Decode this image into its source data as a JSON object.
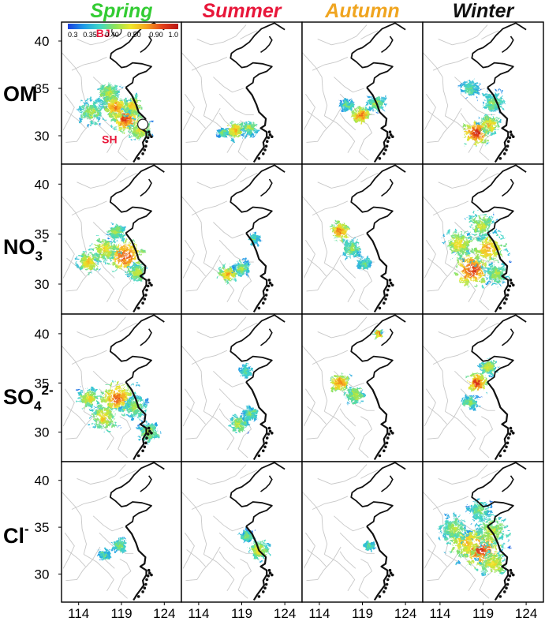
{
  "chart_data": {
    "type": "heatmap",
    "layout": "4x4 small-multiple maps",
    "seasons": [
      {
        "label": "Spring",
        "color": "#33cc33"
      },
      {
        "label": "Summer",
        "color": "#e8173a"
      },
      {
        "label": "Autumn",
        "color": "#f0a520"
      },
      {
        "label": "Winter",
        "color": "#111111"
      }
    ],
    "species": [
      {
        "main": "OM",
        "sub": "",
        "sup": ""
      },
      {
        "main": "NO",
        "sub": "3",
        "sup": "-"
      },
      {
        "main": "SO",
        "sub": "4",
        "sup": "2-"
      },
      {
        "main": "Cl",
        "sub": "",
        "sup": "-"
      }
    ],
    "x_ticks": [
      "114",
      "119",
      "124"
    ],
    "y_ticks": [
      "40",
      "35",
      "30"
    ],
    "xlim": [
      112,
      126
    ],
    "ylim": [
      27,
      42
    ],
    "grid": false,
    "colorbar": {
      "ticks": [
        "0.3",
        "0.35",
        "0.40",
        "0.50",
        "0.90",
        "1.0"
      ],
      "stops": [
        "#1a3fe0",
        "#1e9be8",
        "#3fd6c8",
        "#8ee35a",
        "#f0e62a",
        "#f6a21e",
        "#e4401a",
        "#b81414"
      ]
    },
    "markers": [
      {
        "label": "BJ",
        "lon": 116.4,
        "lat": 39.9,
        "style": "open-circle"
      },
      {
        "label": "SH",
        "lon": 121.5,
        "lat": 31.2,
        "style": "filled-circle"
      }
    ],
    "hotspots": [
      [
        [
          {
            "lon": 119.5,
            "lat": 31.8,
            "r": 1.6,
            "v": 0.95
          },
          {
            "lon": 120.4,
            "lat": 33.2,
            "r": 1.2,
            "v": 0.7
          },
          {
            "lon": 117.5,
            "lat": 34.5,
            "r": 1.4,
            "v": 0.55
          },
          {
            "lon": 115.5,
            "lat": 32.5,
            "r": 1.6,
            "v": 0.5
          },
          {
            "lon": 121.2,
            "lat": 30.6,
            "r": 1.3,
            "v": 0.65
          },
          {
            "lon": 118.3,
            "lat": 33.0,
            "r": 1.5,
            "v": 0.8
          }
        ],
        [
          {
            "lon": 118.2,
            "lat": 30.6,
            "r": 1.1,
            "v": 0.75
          },
          {
            "lon": 120.0,
            "lat": 30.8,
            "r": 0.9,
            "v": 0.55
          },
          {
            "lon": 116.8,
            "lat": 30.3,
            "r": 0.6,
            "v": 0.45
          }
        ],
        [
          {
            "lon": 118.8,
            "lat": 32.2,
            "r": 1.1,
            "v": 0.85
          },
          {
            "lon": 120.6,
            "lat": 33.4,
            "r": 1.0,
            "v": 0.5
          },
          {
            "lon": 117.2,
            "lat": 33.2,
            "r": 0.8,
            "v": 0.4
          }
        ],
        [
          {
            "lon": 118.2,
            "lat": 30.3,
            "r": 1.5,
            "v": 1.0
          },
          {
            "lon": 119.8,
            "lat": 31.2,
            "r": 1.2,
            "v": 0.7
          },
          {
            "lon": 120.2,
            "lat": 33.5,
            "r": 1.4,
            "v": 0.45
          },
          {
            "lon": 117.5,
            "lat": 35.0,
            "r": 1.1,
            "v": 0.4
          }
        ]
      ],
      [
        [
          {
            "lon": 119.5,
            "lat": 32.8,
            "r": 2.0,
            "v": 0.95
          },
          {
            "lon": 117.0,
            "lat": 33.5,
            "r": 1.6,
            "v": 0.65
          },
          {
            "lon": 115.2,
            "lat": 32.2,
            "r": 1.3,
            "v": 0.7
          },
          {
            "lon": 120.8,
            "lat": 31.2,
            "r": 1.2,
            "v": 0.55
          },
          {
            "lon": 118.4,
            "lat": 35.2,
            "r": 1.1,
            "v": 0.5
          }
        ],
        [
          {
            "lon": 117.4,
            "lat": 31.0,
            "r": 1.0,
            "v": 0.75
          },
          {
            "lon": 119.0,
            "lat": 31.6,
            "r": 0.9,
            "v": 0.5
          },
          {
            "lon": 120.4,
            "lat": 34.5,
            "r": 0.6,
            "v": 0.45
          }
        ],
        [
          {
            "lon": 116.4,
            "lat": 35.3,
            "r": 1.0,
            "v": 0.9
          },
          {
            "lon": 117.8,
            "lat": 33.6,
            "r": 1.1,
            "v": 0.5
          },
          {
            "lon": 119.2,
            "lat": 32.0,
            "r": 0.8,
            "v": 0.4
          }
        ],
        [
          {
            "lon": 117.8,
            "lat": 31.5,
            "r": 2.1,
            "v": 0.95
          },
          {
            "lon": 119.6,
            "lat": 33.5,
            "r": 2.0,
            "v": 0.75
          },
          {
            "lon": 116.2,
            "lat": 34.0,
            "r": 1.7,
            "v": 0.65
          },
          {
            "lon": 118.8,
            "lat": 35.9,
            "r": 1.6,
            "v": 0.55
          },
          {
            "lon": 120.6,
            "lat": 31.0,
            "r": 1.4,
            "v": 0.5
          }
        ]
      ],
      [
        [
          {
            "lon": 118.5,
            "lat": 33.5,
            "r": 2.0,
            "v": 0.85
          },
          {
            "lon": 117.0,
            "lat": 31.5,
            "r": 1.6,
            "v": 0.65
          },
          {
            "lon": 120.6,
            "lat": 32.5,
            "r": 1.5,
            "v": 0.5
          },
          {
            "lon": 115.2,
            "lat": 33.4,
            "r": 1.3,
            "v": 0.6
          },
          {
            "lon": 122.2,
            "lat": 30.0,
            "r": 1.3,
            "v": 0.5
          }
        ],
        [
          {
            "lon": 118.6,
            "lat": 30.8,
            "r": 1.1,
            "v": 0.55
          },
          {
            "lon": 120.0,
            "lat": 31.8,
            "r": 0.9,
            "v": 0.45
          },
          {
            "lon": 119.5,
            "lat": 36.2,
            "r": 0.8,
            "v": 0.4
          }
        ],
        [
          {
            "lon": 116.4,
            "lat": 35.0,
            "r": 1.1,
            "v": 0.85
          },
          {
            "lon": 118.2,
            "lat": 33.8,
            "r": 1.1,
            "v": 0.55
          },
          {
            "lon": 120.8,
            "lat": 40.0,
            "r": 0.4,
            "v": 0.85
          }
        ],
        [
          {
            "lon": 118.3,
            "lat": 35.0,
            "r": 1.2,
            "v": 0.95
          },
          {
            "lon": 119.6,
            "lat": 36.6,
            "r": 0.9,
            "v": 0.6
          },
          {
            "lon": 117.5,
            "lat": 33.0,
            "r": 0.9,
            "v": 0.45
          }
        ]
      ],
      [
        [
          {
            "lon": 118.8,
            "lat": 33.0,
            "r": 0.9,
            "v": 0.45
          },
          {
            "lon": 117.0,
            "lat": 32.0,
            "r": 0.7,
            "v": 0.4
          }
        ],
        [
          {
            "lon": 121.0,
            "lat": 32.5,
            "r": 1.2,
            "v": 0.6
          },
          {
            "lon": 119.5,
            "lat": 34.0,
            "r": 0.8,
            "v": 0.45
          }
        ],
        [
          {
            "lon": 119.8,
            "lat": 33.0,
            "r": 0.6,
            "v": 0.45
          }
        ],
        [
          {
            "lon": 118.8,
            "lat": 32.6,
            "r": 2.4,
            "v": 0.95
          },
          {
            "lon": 117.0,
            "lat": 33.5,
            "r": 2.3,
            "v": 0.7
          },
          {
            "lon": 120.0,
            "lat": 34.6,
            "r": 2.0,
            "v": 0.55
          },
          {
            "lon": 115.6,
            "lat": 34.8,
            "r": 1.7,
            "v": 0.5
          },
          {
            "lon": 120.2,
            "lat": 31.0,
            "r": 1.6,
            "v": 0.65
          },
          {
            "lon": 118.6,
            "lat": 36.8,
            "r": 1.4,
            "v": 0.45
          }
        ]
      ]
    ]
  }
}
